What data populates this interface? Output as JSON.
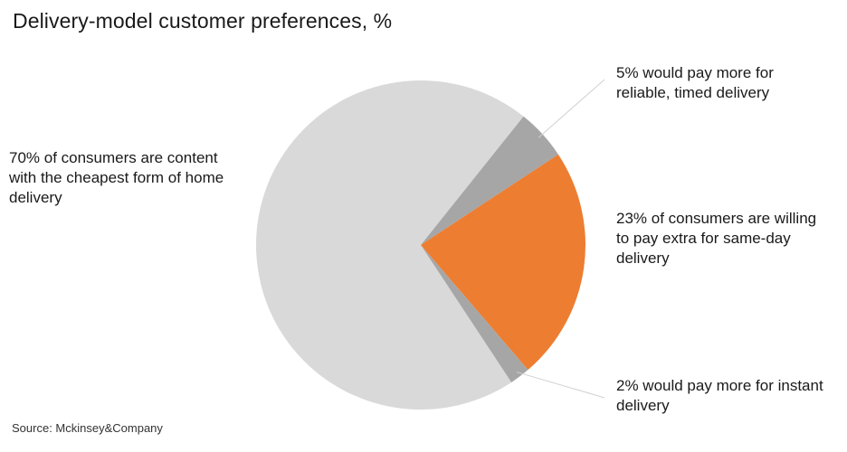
{
  "title": "Delivery-model customer preferences, %",
  "source": "Source: Mckinsey&Company",
  "colors": {
    "light_gray": "#d9d9d9",
    "mid_gray": "#a6a6a6",
    "orange": "#ed7d31",
    "leader_line": "#d0d0d0"
  },
  "chart_data": {
    "type": "pie",
    "title": "Delivery-model customer preferences, %",
    "slices": [
      {
        "value": 70,
        "label": "70% of consumers are content with the cheapest form of home delivery",
        "color": "#d9d9d9"
      },
      {
        "value": 5,
        "label": "5% would pay more for reliable, timed delivery",
        "color": "#a6a6a6"
      },
      {
        "value": 23,
        "label": "23% of consumers are willing to pay extra for same-day delivery",
        "color": "#ed7d31"
      },
      {
        "value": 2,
        "label": "2% would pay more for instant delivery",
        "color": "#a6a6a6"
      }
    ]
  }
}
